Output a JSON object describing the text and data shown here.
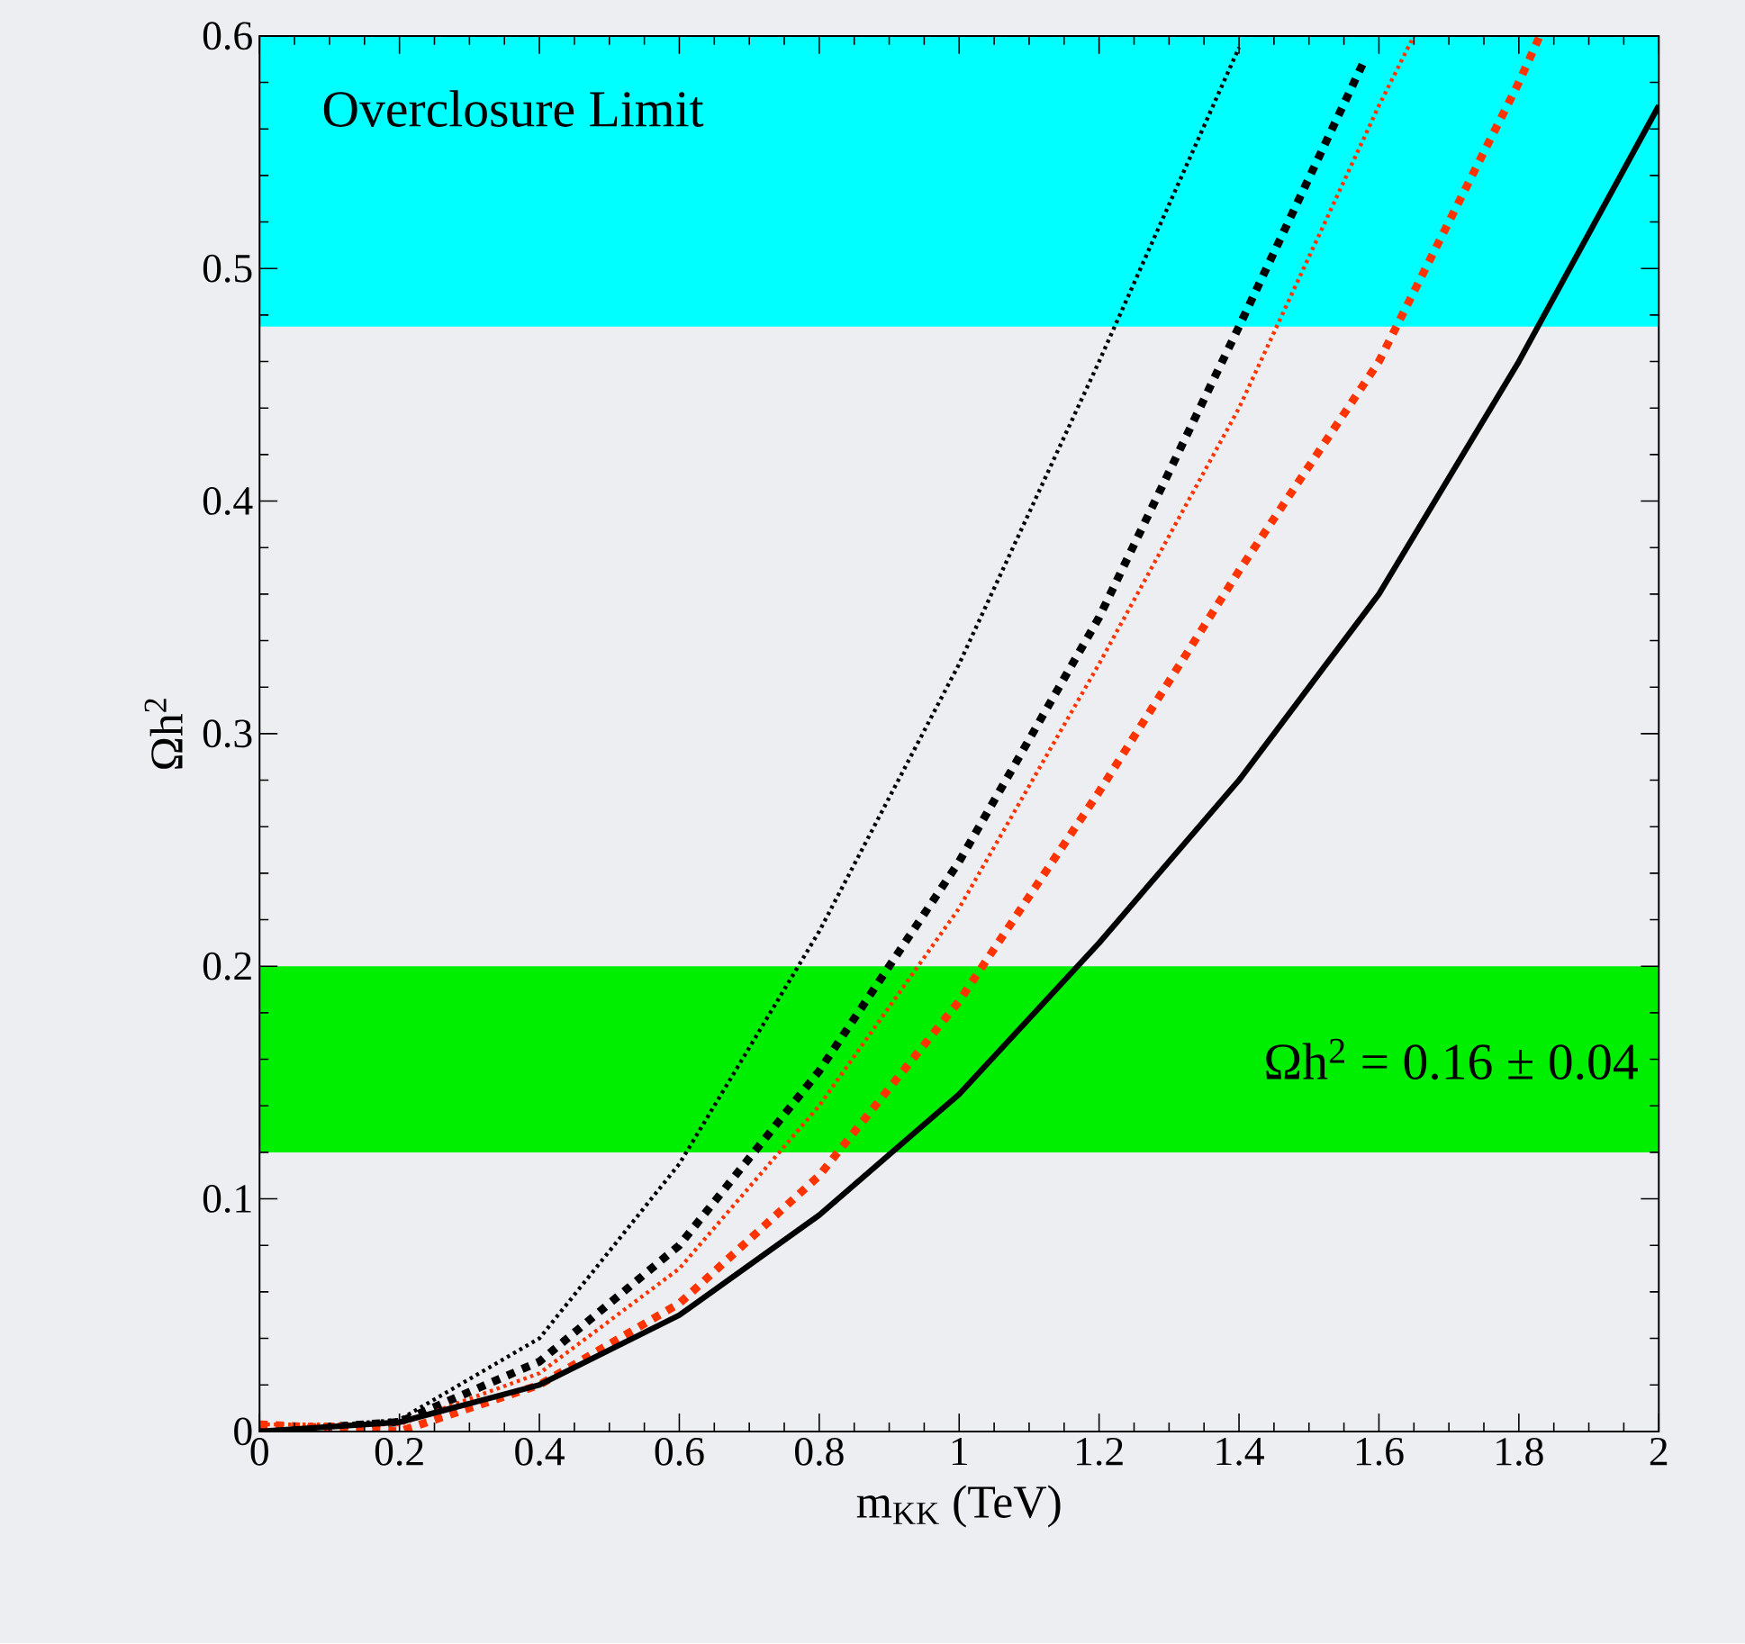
{
  "chart_data": {
    "type": "line",
    "xlabel": "m$_{KK}$ (TeV)",
    "ylabel": "Ωh$^{2}$",
    "xlim": [
      0,
      2
    ],
    "ylim": [
      0,
      0.6
    ],
    "xticks": [
      0,
      0.2,
      0.4,
      0.6,
      0.8,
      1,
      1.2,
      1.4,
      1.6,
      1.8,
      2
    ],
    "yticks": [
      0,
      0.1,
      0.2,
      0.3,
      0.4,
      0.5,
      0.6
    ],
    "grid": false,
    "marker": "none",
    "bands": [
      {
        "axis": "y",
        "from": 0.475,
        "to": 0.6,
        "label": "Overclosure Limit",
        "color": "#00ffff"
      },
      {
        "axis": "y",
        "from": 0.12,
        "to": 0.2,
        "label": "Ωh$^{2}$ = 0.16 ± 0.04",
        "color": "#00ee00"
      }
    ],
    "series": [
      {
        "color": "#000000",
        "line_style": "dotted",
        "x": [
          0,
          0.2,
          0.4,
          0.6,
          0.8,
          1.0,
          1.2,
          1.4
        ],
        "values": [
          0,
          0.005,
          0.04,
          0.115,
          0.215,
          0.33,
          0.46,
          0.595
        ]
      },
      {
        "color": "#000000",
        "line_style": "dashed",
        "x": [
          0,
          0.2,
          0.4,
          0.6,
          0.8,
          1.0,
          1.2,
          1.4,
          1.58
        ],
        "values": [
          0,
          0.004,
          0.03,
          0.08,
          0.155,
          0.245,
          0.35,
          0.475,
          0.59
        ]
      },
      {
        "color": "#ff3300",
        "line_style": "dotted",
        "x": [
          0,
          0.2,
          0.4,
          0.6,
          0.8,
          1.0,
          1.2,
          1.4,
          1.6,
          1.65
        ],
        "values": [
          0.003,
          0.003,
          0.025,
          0.07,
          0.14,
          0.225,
          0.33,
          0.44,
          0.57,
          0.6
        ]
      },
      {
        "color": "#ff3300",
        "line_style": "dashed",
        "x": [
          0,
          0.2,
          0.4,
          0.6,
          0.8,
          1.0,
          1.2,
          1.4,
          1.6,
          1.8,
          1.83
        ],
        "values": [
          0.003,
          0.0,
          0.02,
          0.055,
          0.11,
          0.185,
          0.275,
          0.37,
          0.46,
          0.58,
          0.6
        ]
      },
      {
        "color": "#000000",
        "line_style": "solid",
        "x": [
          0,
          0.2,
          0.4,
          0.6,
          0.8,
          1.0,
          1.2,
          1.4,
          1.6,
          1.8,
          2.0
        ],
        "values": [
          0,
          0.004,
          0.02,
          0.05,
          0.093,
          0.145,
          0.21,
          0.28,
          0.36,
          0.46,
          0.57
        ]
      }
    ]
  }
}
